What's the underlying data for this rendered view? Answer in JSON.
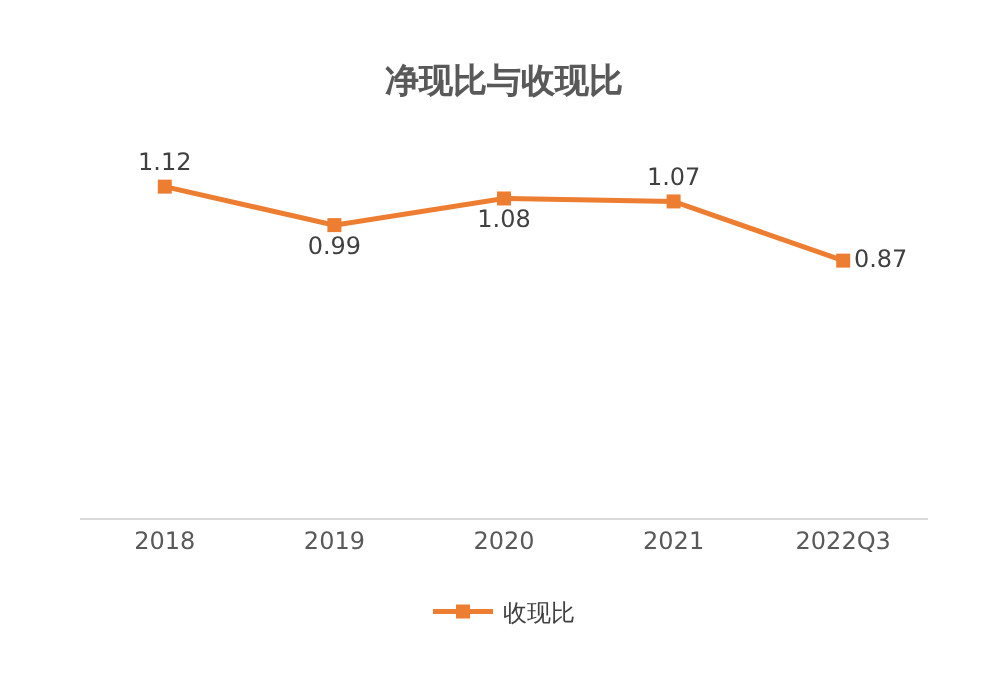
{
  "chart_data": {
    "type": "line",
    "title": "净现比与收现比",
    "categories": [
      "2018",
      "2019",
      "2020",
      "2021",
      "2022Q3"
    ],
    "series": [
      {
        "name": "收现比",
        "color": "#ed7d31",
        "values": [
          1.12,
          0.99,
          1.08,
          1.07,
          0.87
        ]
      }
    ],
    "tick_labels": "x",
    "data_labels": true,
    "marker": "square",
    "line_style": "solid",
    "legend": "bottom"
  }
}
